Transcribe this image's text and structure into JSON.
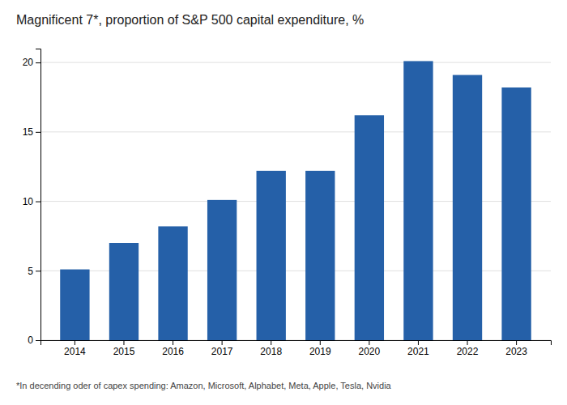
{
  "chart_data": {
    "type": "bar",
    "title": "Magnificent 7*, proportion of S&P 500 capital expenditure, %",
    "annotations": [
      "*In decending oder of capex spending: Amazon, Microsoft, Alphabet, Meta, Apple, Tesla, Nvidia"
    ],
    "categories": [
      "2014",
      "2015",
      "2016",
      "2017",
      "2018",
      "2019",
      "2020",
      "2021",
      "2022",
      "2023"
    ],
    "values": [
      5.1,
      7.0,
      8.2,
      10.1,
      12.2,
      12.2,
      16.2,
      20.1,
      19.1,
      18.2
    ],
    "color": "#2560a8",
    "ylim": [
      0,
      21
    ],
    "yticks": [
      0,
      5,
      10,
      15,
      20
    ],
    "grid": true
  }
}
